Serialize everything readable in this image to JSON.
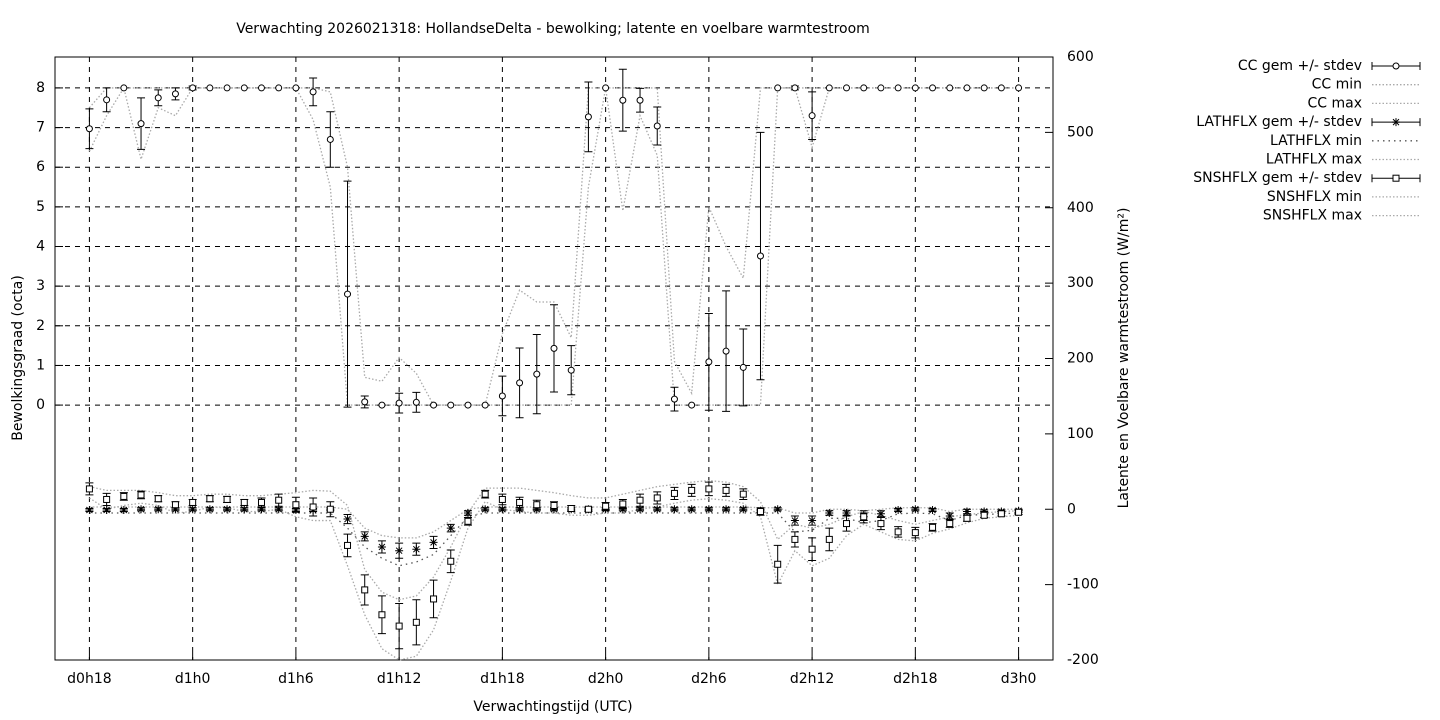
{
  "chart_data": {
    "type": "errorbar",
    "title": "Verwachting 2026021318: HollandseDelta - bewolking; latente en voelbare warmtestroom",
    "x_label": "Verwachtingstijd (UTC)",
    "y_label": "Bewolkingsgraad (octa)",
    "y2_label": "Latente en Voelbare warmtestroom (W/m²)",
    "xlim": [
      16,
      74
    ],
    "xticks": [
      {
        "value": 18,
        "label": "d0h18"
      },
      {
        "value": 24,
        "label": "d1h0"
      },
      {
        "value": 30,
        "label": "d1h6"
      },
      {
        "value": 36,
        "label": "d1h12"
      },
      {
        "value": 42,
        "label": "d1h18"
      },
      {
        "value": 48,
        "label": "d2h0"
      },
      {
        "value": 54,
        "label": "d2h6"
      },
      {
        "value": 60,
        "label": "d2h12"
      },
      {
        "value": 66,
        "label": "d2h18"
      },
      {
        "value": 72,
        "label": "d3h0"
      }
    ],
    "ylim": [
      -6.43,
      8.78
    ],
    "yticks": [
      0,
      1,
      2,
      3,
      4,
      5,
      6,
      7,
      8
    ],
    "y2lim": [
      -200,
      600
    ],
    "y2ticks": [
      -200,
      -100,
      0,
      100,
      200,
      300,
      400,
      500,
      600
    ],
    "grid": true,
    "legend": "outside-top-right",
    "x": [
      18,
      19,
      20,
      21,
      22,
      23,
      24,
      25,
      26,
      27,
      28,
      29,
      30,
      31,
      32,
      33,
      34,
      35,
      36,
      37,
      38,
      39,
      40,
      41,
      42,
      43,
      44,
      45,
      46,
      47,
      48,
      49,
      50,
      51,
      52,
      53,
      54,
      55,
      56,
      57,
      58,
      59,
      60,
      61,
      62,
      63,
      64,
      65,
      66,
      67,
      68,
      69,
      70,
      71,
      72
    ],
    "series": [
      {
        "name": "CC gem +/- stdev",
        "style": "errorbars",
        "marker": "circle",
        "color": "#000000",
        "values": [
          6.97,
          7.7,
          8,
          7.1,
          7.75,
          7.85,
          8,
          8,
          8,
          8,
          8,
          8,
          8,
          7.9,
          6.7,
          2.8,
          0.08,
          0,
          0.05,
          0.07,
          0,
          0,
          0,
          0,
          0.23,
          0.56,
          0.78,
          1.43,
          0.88,
          7.27,
          8,
          7.69,
          7.69,
          7.04,
          0.15,
          0,
          1.09,
          1.36,
          0.95,
          3.76,
          8,
          8,
          7.3,
          8,
          8,
          8,
          8,
          8,
          8,
          8,
          8,
          8,
          8,
          8,
          8
        ],
        "errors": [
          0.5,
          0.3,
          0,
          0.65,
          0.2,
          0.15,
          0.05,
          0,
          0,
          0,
          0,
          0,
          0,
          0.35,
          0.7,
          2.85,
          0.15,
          0,
          0.25,
          0.25,
          0,
          0,
          0,
          0,
          0.5,
          0.88,
          1.0,
          1.1,
          0.62,
          0.88,
          0,
          0.78,
          0.3,
          0.48,
          0.3,
          0,
          1.22,
          1.52,
          0.97,
          3.12,
          0,
          0.05,
          0.6,
          0,
          0,
          0,
          0,
          0,
          0,
          0,
          0,
          0,
          0,
          0,
          0
        ]
      },
      {
        "name": "CC min",
        "style": "dotted",
        "color": "#aaaaaa",
        "values": [
          6.4,
          7.3,
          8,
          6.2,
          7.5,
          7.3,
          8,
          8,
          8,
          8,
          8,
          8,
          8,
          7.2,
          5.5,
          0,
          0,
          0,
          0,
          0,
          0,
          0,
          0,
          0,
          0,
          0,
          0,
          0,
          0,
          5.5,
          8,
          4.9,
          7.3,
          6.3,
          0,
          0,
          0,
          0,
          0,
          0,
          8,
          8,
          6.5,
          8,
          8,
          8,
          8,
          8,
          8,
          8,
          8,
          8,
          8,
          8,
          8
        ]
      },
      {
        "name": "CC max",
        "style": "dotted",
        "color": "#aaaaaa",
        "values": [
          7.5,
          8,
          8,
          8,
          8,
          8,
          8,
          8,
          8,
          8,
          8,
          8,
          8,
          8,
          7.9,
          6.0,
          0.7,
          0.6,
          1.2,
          0.8,
          0,
          0,
          0,
          0,
          1.8,
          2.9,
          2.6,
          2.6,
          1.7,
          8,
          8,
          8,
          8,
          8,
          1.1,
          0.3,
          5,
          4,
          3.2,
          8,
          8,
          8,
          8,
          8,
          8,
          8,
          8,
          8,
          8,
          8,
          8,
          8,
          8,
          8,
          8
        ]
      },
      {
        "name": "LATHFLX gem +/- stdev",
        "style": "errorbars",
        "marker": "star",
        "color": "#000000",
        "axis": "y2",
        "values": [
          -1,
          -1,
          -1,
          0,
          0,
          0,
          0,
          0,
          0,
          0,
          0,
          0,
          -1,
          -1,
          0,
          -13,
          -36,
          -50,
          -55,
          -53,
          -44,
          -25,
          -5,
          0,
          0,
          0,
          0,
          0,
          0,
          0,
          0,
          0,
          0,
          0,
          0,
          0,
          0,
          0,
          0,
          -2,
          0,
          -15,
          -15,
          -5,
          -5,
          -10,
          -6,
          -1,
          0,
          -1,
          -9,
          -3,
          -3,
          -3,
          -2
        ],
        "errors": [
          2,
          2,
          2,
          2,
          2,
          2,
          2,
          2,
          2,
          2,
          2,
          2,
          2,
          2,
          2,
          6,
          6,
          8,
          10,
          8,
          8,
          5,
          3,
          2,
          2,
          2,
          2,
          2,
          2,
          2,
          2,
          2,
          2,
          2,
          2,
          2,
          2,
          2,
          2,
          2,
          2,
          6,
          6,
          3,
          3,
          5,
          4,
          2,
          2,
          2,
          4,
          3,
          2,
          2,
          2
        ]
      },
      {
        "name": "LATHFLX min",
        "style": "dotted",
        "color": "#555555",
        "axis": "y2",
        "values": [
          -5,
          -5,
          -5,
          -5,
          -5,
          -5,
          -5,
          -5,
          -5,
          -5,
          -5,
          -5,
          -5,
          -5,
          -5,
          -25,
          -50,
          -65,
          -75,
          -70,
          -60,
          -35,
          -10,
          -5,
          -5,
          -5,
          -5,
          -5,
          -5,
          -5,
          -5,
          -5,
          -5,
          -5,
          -5,
          -5,
          -5,
          -5,
          -5,
          -5,
          -5,
          -30,
          -28,
          -12,
          -12,
          -18,
          -15,
          -6,
          -5,
          -6,
          -15,
          -8,
          -7,
          -6,
          -5
        ]
      },
      {
        "name": "LATHFLX max",
        "style": "dotted",
        "color": "#aaaaaa",
        "axis": "y2",
        "values": [
          3,
          3,
          3,
          3,
          3,
          3,
          3,
          3,
          3,
          3,
          3,
          3,
          3,
          3,
          3,
          0,
          -25,
          -35,
          -38,
          -38,
          -30,
          -15,
          0,
          3,
          3,
          3,
          3,
          3,
          3,
          3,
          3,
          3,
          3,
          3,
          3,
          3,
          3,
          3,
          3,
          2,
          2,
          -5,
          -5,
          0,
          0,
          -2,
          0,
          2,
          2,
          2,
          -3,
          0,
          0,
          0,
          0
        ]
      },
      {
        "name": "SNSHFLX gem +/- stdev",
        "style": "errorbars",
        "marker": "square",
        "color": "#000000",
        "axis": "y2",
        "values": [
          27,
          13,
          17,
          19,
          14,
          6,
          9,
          14,
          13,
          9,
          9,
          12,
          6,
          3,
          0,
          -48,
          -107,
          -140,
          -155,
          -150,
          -119,
          -69,
          -16,
          20,
          13,
          9,
          6,
          5,
          1,
          0,
          4,
          7,
          12,
          15,
          21,
          25,
          27,
          25,
          20,
          -3,
          -73,
          -40,
          -53,
          -40,
          -19,
          -10,
          -19,
          -30,
          -31,
          -24,
          -19,
          -12,
          -8,
          -6,
          -4
        ],
        "errors": [
          8,
          8,
          5,
          5,
          4,
          4,
          4,
          4,
          4,
          4,
          6,
          8,
          10,
          12,
          10,
          15,
          20,
          25,
          30,
          30,
          25,
          15,
          5,
          5,
          7,
          7,
          6,
          5,
          4,
          3,
          5,
          6,
          8,
          8,
          8,
          8,
          9,
          8,
          7,
          5,
          25,
          10,
          15,
          15,
          10,
          8,
          8,
          7,
          7,
          5,
          5,
          4,
          3,
          3,
          3
        ]
      },
      {
        "name": "SNSHFLX min",
        "style": "dotted",
        "color": "#aaaaaa",
        "axis": "y2",
        "values": [
          15,
          0,
          5,
          8,
          5,
          -5,
          -3,
          3,
          2,
          -3,
          -3,
          0,
          -10,
          -15,
          -15,
          -75,
          -140,
          -185,
          -200,
          -195,
          -160,
          -95,
          -25,
          10,
          0,
          -3,
          -5,
          -5,
          -8,
          -8,
          -5,
          -5,
          0,
          3,
          8,
          12,
          14,
          12,
          8,
          -10,
          -100,
          -55,
          -75,
          -65,
          -35,
          -20,
          -30,
          -40,
          -42,
          -32,
          -26,
          -18,
          -12,
          -10,
          -8
        ]
      },
      {
        "name": "SNSHFLX max",
        "style": "dotted",
        "color": "#aaaaaa",
        "axis": "y2",
        "values": [
          30,
          25,
          25,
          25,
          22,
          18,
          18,
          20,
          20,
          18,
          18,
          20,
          22,
          25,
          24,
          5,
          -80,
          -110,
          -120,
          -115,
          -90,
          -50,
          -5,
          28,
          28,
          28,
          25,
          22,
          18,
          15,
          15,
          20,
          25,
          30,
          33,
          36,
          38,
          36,
          30,
          10,
          -40,
          -20,
          -25,
          -20,
          -10,
          -3,
          -8,
          -15,
          -20,
          -15,
          -10,
          -7,
          -5,
          -3,
          -2
        ]
      }
    ]
  }
}
